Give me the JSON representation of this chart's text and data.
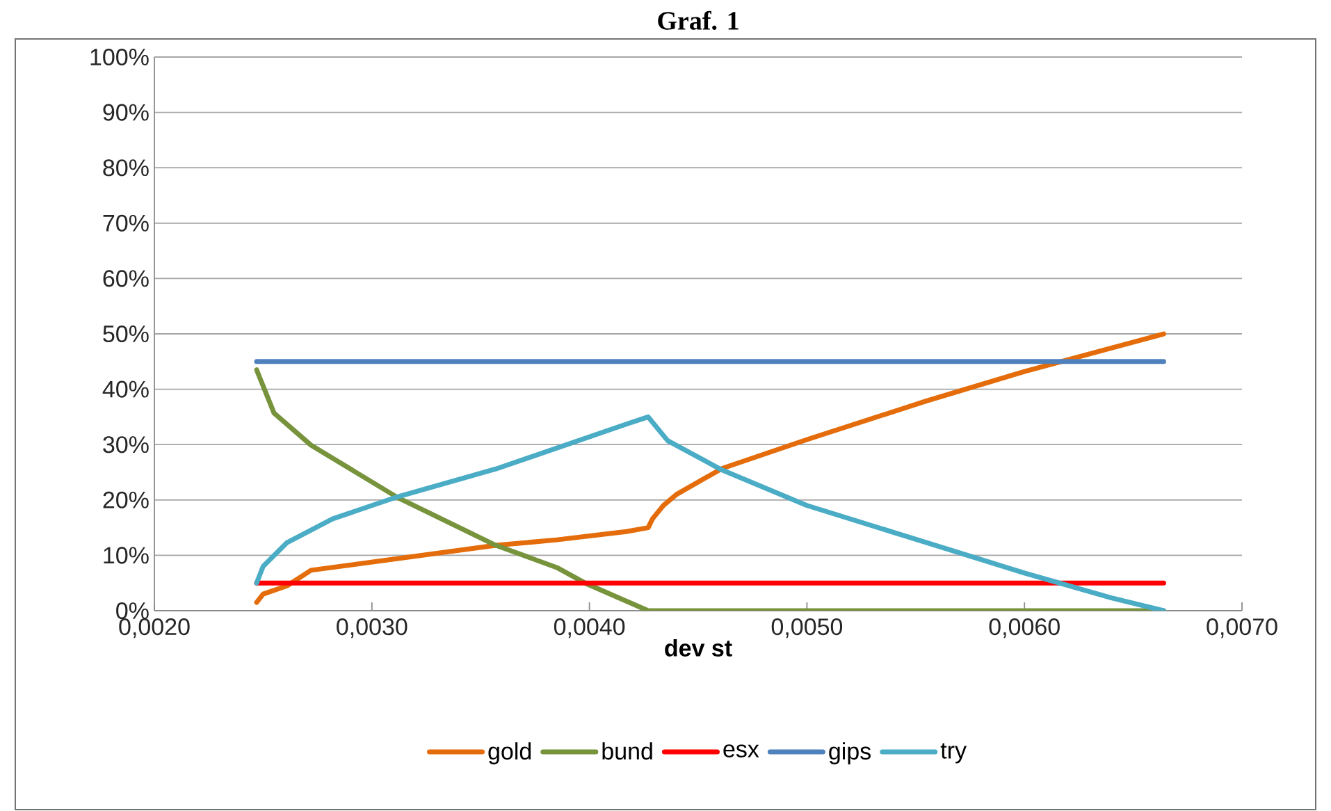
{
  "chart_data": {
    "type": "line",
    "title": "Graf. 1",
    "xlabel": "dev st",
    "xlim": [
      0.002,
      0.007
    ],
    "xticks": [
      {
        "value": 0.002,
        "label": "0,0020"
      },
      {
        "value": 0.003,
        "label": "0,0030"
      },
      {
        "value": 0.004,
        "label": "0,0040"
      },
      {
        "value": 0.005,
        "label": "0,0050"
      },
      {
        "value": 0.006,
        "label": "0,0060"
      },
      {
        "value": 0.007,
        "label": "0,0070"
      }
    ],
    "ylim": [
      0,
      100
    ],
    "yticks": [
      {
        "value": 0,
        "label": "0%"
      },
      {
        "value": 10,
        "label": "10%"
      },
      {
        "value": 20,
        "label": "20%"
      },
      {
        "value": 30,
        "label": "30%"
      },
      {
        "value": 40,
        "label": "40%"
      },
      {
        "value": 50,
        "label": "50%"
      },
      {
        "value": 60,
        "label": "60%"
      },
      {
        "value": 70,
        "label": "70%"
      },
      {
        "value": 80,
        "label": "80%"
      },
      {
        "value": 90,
        "label": "90%"
      },
      {
        "value": 100,
        "label": "100%"
      }
    ],
    "grid": "y",
    "legend": "bottom",
    "marker": "none",
    "line_style": "solid",
    "series": [
      {
        "name": "gold",
        "color": "#e46c0a",
        "x": [
          0.00247,
          0.0025,
          0.00261,
          0.00272,
          0.00357,
          0.00385,
          0.00417,
          0.00427,
          0.00429,
          0.00434,
          0.0044,
          0.00461,
          0.005,
          0.00555,
          0.006,
          0.00664
        ],
        "values": [
          1.5,
          3,
          4.5,
          7.3,
          11.8,
          12.8,
          14.3,
          15,
          16.6,
          19,
          21,
          25.7,
          30.9,
          37.9,
          43.2,
          50
        ]
      },
      {
        "name": "bund",
        "color": "#77933c",
        "x": [
          0.00247,
          0.00255,
          0.00272,
          0.00312,
          0.00357,
          0.00385,
          0.00399,
          0.00427,
          0.00664
        ],
        "values": [
          43.5,
          35.7,
          29.9,
          20.4,
          11.8,
          7.8,
          4.8,
          0,
          0
        ]
      },
      {
        "name": "esx",
        "color": "#ff0000",
        "x": [
          0.00247,
          0.00664
        ],
        "values": [
          5,
          5
        ]
      },
      {
        "name": "gips",
        "color": "#4f81bd",
        "x": [
          0.00247,
          0.00664
        ],
        "values": [
          45,
          45
        ]
      },
      {
        "name": "try",
        "color": "#4bacc6",
        "x": [
          0.00247,
          0.0025,
          0.00261,
          0.00282,
          0.00312,
          0.00357,
          0.00417,
          0.00427,
          0.00436,
          0.00461,
          0.005,
          0.00555,
          0.006,
          0.0064,
          0.00664
        ],
        "values": [
          5,
          8,
          12.3,
          16.6,
          20.6,
          25.6,
          33.7,
          35,
          30.7,
          25.4,
          19,
          12.3,
          6.8,
          2.3,
          0
        ]
      }
    ]
  }
}
